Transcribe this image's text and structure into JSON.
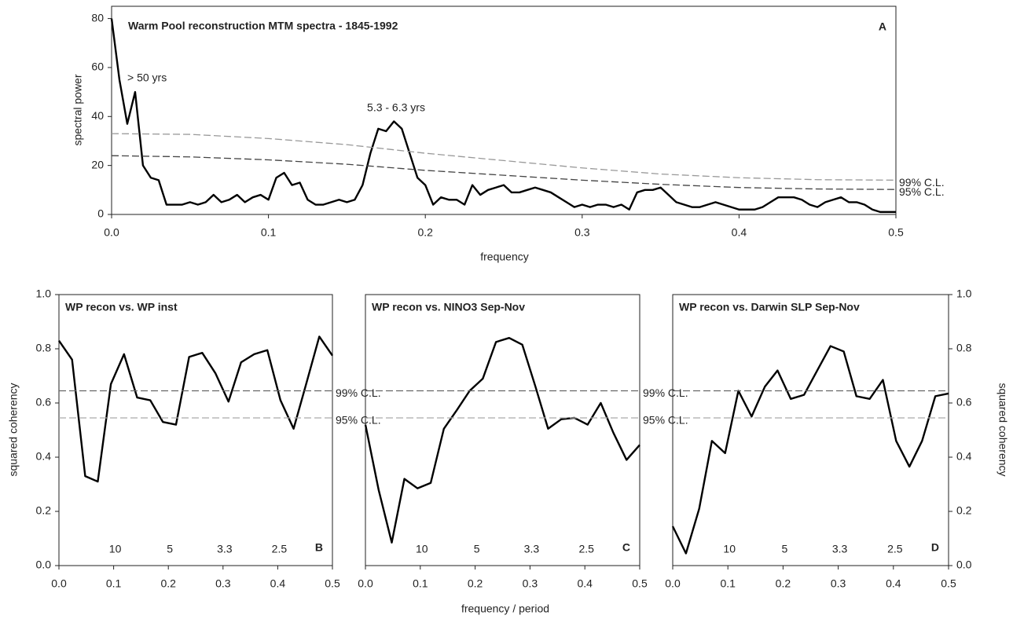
{
  "chart_data": [
    {
      "type": "line",
      "panel": "A",
      "title": "Warm Pool reconstruction MTM spectra - 1845-1992",
      "xlabel": "frequency",
      "ylabel": "spectral power",
      "annotations": [
        "> 50 yrs",
        "5.3 - 6.3 yrs"
      ],
      "xlim": [
        0,
        0.5
      ],
      "ylim": [
        0,
        85
      ],
      "xticks": [
        {
          "value": 0,
          "label": "0.0"
        },
        0.1,
        0.2,
        0.3,
        0.4,
        0.5
      ],
      "yticks": [
        0,
        20,
        40,
        60,
        80
      ],
      "ytick_side": "left",
      "x": [
        0,
        0.005,
        0.01,
        0.015,
        0.02,
        0.025,
        0.03,
        0.035,
        0.04,
        0.045,
        0.05,
        0.055,
        0.06,
        0.065,
        0.07,
        0.075,
        0.08,
        0.085,
        0.09,
        0.095,
        0.1,
        0.105,
        0.11,
        0.115,
        0.12,
        0.125,
        0.13,
        0.135,
        0.14,
        0.145,
        0.15,
        0.155,
        0.16,
        0.165,
        0.17,
        0.175,
        0.18,
        0.185,
        0.19,
        0.195,
        0.2,
        0.205,
        0.21,
        0.215,
        0.22,
        0.225,
        0.23,
        0.235,
        0.24,
        0.245,
        0.25,
        0.255,
        0.26,
        0.265,
        0.27,
        0.275,
        0.28,
        0.285,
        0.29,
        0.295,
        0.3,
        0.305,
        0.31,
        0.315,
        0.32,
        0.325,
        0.33,
        0.335,
        0.34,
        0.345,
        0.35,
        0.355,
        0.36,
        0.365,
        0.37,
        0.375,
        0.38,
        0.385,
        0.39,
        0.395,
        0.4,
        0.405,
        0.41,
        0.415,
        0.42,
        0.425,
        0.43,
        0.435,
        0.44,
        0.445,
        0.45,
        0.455,
        0.46,
        0.465,
        0.47,
        0.475,
        0.48,
        0.485,
        0.49,
        0.495,
        0.5
      ],
      "series": [
        {
          "color": "#000000",
          "values": [
            80,
            55,
            37,
            50,
            20,
            15,
            14,
            4,
            4,
            4,
            5,
            4,
            5,
            8,
            5,
            6,
            8,
            5,
            7,
            8,
            6,
            15,
            17,
            12,
            13,
            6,
            4,
            4,
            5,
            6,
            5,
            6,
            12,
            25,
            35,
            34,
            38,
            35,
            25,
            15,
            12,
            4,
            7,
            6,
            6,
            4,
            12,
            8,
            10,
            11,
            12,
            9,
            9,
            10,
            11,
            10,
            9,
            7,
            5,
            3,
            4,
            3,
            4,
            4,
            3,
            4,
            2,
            9,
            10,
            10,
            11,
            8,
            5,
            4,
            3,
            3,
            4,
            5,
            4,
            3,
            2,
            2,
            2,
            3,
            5,
            7,
            7,
            7,
            6,
            4,
            3,
            5,
            6,
            7,
            5,
            5,
            4,
            2,
            1,
            1,
            1
          ]
        },
        {
          "name": "99% C.L.",
          "color": "#999999",
          "dashed": true,
          "x": [
            0,
            0.05,
            0.1,
            0.15,
            0.2,
            0.25,
            0.3,
            0.35,
            0.4,
            0.45,
            0.5
          ],
          "values": [
            33,
            32.7,
            31,
            28.5,
            25,
            22,
            19,
            16.5,
            15,
            14.2,
            14
          ]
        },
        {
          "name": "95% C.L.",
          "color": "#444444",
          "dashed": true,
          "x": [
            0,
            0.05,
            0.1,
            0.15,
            0.2,
            0.25,
            0.3,
            0.35,
            0.4,
            0.45,
            0.5
          ],
          "values": [
            24,
            23.5,
            22.3,
            20.5,
            18,
            16,
            14,
            12.3,
            11,
            10.4,
            10.2
          ]
        }
      ]
    },
    {
      "type": "line",
      "panel": "B",
      "title": "WP recon vs. WP inst",
      "ylabel": "squared coherency",
      "period_labels": [
        "10",
        "5",
        "3.3",
        "2.5"
      ],
      "xlim": [
        0,
        0.5
      ],
      "ylim": [
        0,
        1
      ],
      "xticks": [
        {
          "value": 0,
          "label": "0.0"
        },
        0.1,
        0.2,
        0.3,
        0.4,
        0.5
      ],
      "yticks": [
        {
          "value": 0,
          "label": "0.0"
        },
        0.2,
        0.4,
        0.6,
        0.8,
        {
          "value": 1,
          "label": "1.0"
        }
      ],
      "ytick_side": "left",
      "x": [
        0,
        0.024,
        0.048,
        0.071,
        0.095,
        0.119,
        0.143,
        0.167,
        0.19,
        0.214,
        0.238,
        0.262,
        0.286,
        0.31,
        0.333,
        0.357,
        0.381,
        0.405,
        0.429,
        0.452,
        0.476,
        0.5
      ],
      "series": [
        {
          "color": "#000000",
          "values": [
            0.83,
            0.76,
            0.33,
            0.31,
            0.67,
            0.78,
            0.62,
            0.61,
            0.53,
            0.52,
            0.77,
            0.785,
            0.71,
            0.605,
            0.75,
            0.78,
            0.795,
            0.61,
            0.505,
            0.67,
            0.845,
            0.775
          ]
        },
        {
          "name": "99% C.L.",
          "color": "#666666",
          "dashed": true,
          "x": [
            0,
            0.5
          ],
          "values": [
            0.645,
            0.645
          ]
        },
        {
          "name": "95% C.L.",
          "color": "#aaaaaa",
          "dashed": true,
          "x": [
            0,
            0.5
          ],
          "values": [
            0.545,
            0.545
          ]
        }
      ]
    },
    {
      "type": "line",
      "panel": "C",
      "title": "WP recon vs. NINO3 Sep-Nov",
      "xlabel": "frequency / period",
      "period_labels": [
        "10",
        "5",
        "3.3",
        "2.5"
      ],
      "xlim": [
        0,
        0.5
      ],
      "ylim": [
        0,
        1
      ],
      "xticks": [
        {
          "value": 0,
          "label": "0.0"
        },
        0.1,
        0.2,
        0.3,
        0.4,
        0.5
      ],
      "x": [
        0,
        0.024,
        0.048,
        0.071,
        0.095,
        0.119,
        0.143,
        0.167,
        0.19,
        0.214,
        0.238,
        0.262,
        0.286,
        0.31,
        0.333,
        0.357,
        0.381,
        0.405,
        0.429,
        0.452,
        0.476,
        0.5
      ],
      "series": [
        {
          "color": "#000000",
          "values": [
            0.52,
            0.28,
            0.085,
            0.32,
            0.285,
            0.305,
            0.505,
            0.575,
            0.645,
            0.69,
            0.825,
            0.84,
            0.815,
            0.66,
            0.505,
            0.54,
            0.545,
            0.52,
            0.6,
            0.49,
            0.39,
            0.445
          ]
        },
        {
          "name": "99% C.L.",
          "color": "#666666",
          "dashed": true,
          "x": [
            0,
            0.5
          ],
          "values": [
            0.645,
            0.645
          ]
        },
        {
          "name": "95% C.L.",
          "color": "#aaaaaa",
          "dashed": true,
          "x": [
            0,
            0.5
          ],
          "values": [
            0.545,
            0.545
          ]
        }
      ]
    },
    {
      "type": "line",
      "panel": "D",
      "title": "WP recon vs. Darwin SLP Sep-Nov",
      "ylabel": "squared coherency",
      "period_labels": [
        "10",
        "5",
        "3.3",
        "2.5"
      ],
      "xlim": [
        0,
        0.5
      ],
      "ylim": [
        0,
        1
      ],
      "xticks": [
        {
          "value": 0,
          "label": "0.0"
        },
        0.1,
        0.2,
        0.3,
        0.4,
        0.5
      ],
      "yticks": [
        {
          "value": 0,
          "label": "0.0"
        },
        0.2,
        0.4,
        0.6,
        0.8,
        {
          "value": 1,
          "label": "1.0"
        }
      ],
      "ytick_side": "right",
      "x": [
        0,
        0.024,
        0.048,
        0.071,
        0.095,
        0.119,
        0.143,
        0.167,
        0.19,
        0.214,
        0.238,
        0.262,
        0.286,
        0.31,
        0.333,
        0.357,
        0.381,
        0.405,
        0.429,
        0.452,
        0.476,
        0.5
      ],
      "series": [
        {
          "color": "#000000",
          "values": [
            0.145,
            0.045,
            0.21,
            0.46,
            0.415,
            0.645,
            0.55,
            0.66,
            0.72,
            0.615,
            0.63,
            0.72,
            0.81,
            0.79,
            0.625,
            0.615,
            0.685,
            0.46,
            0.365,
            0.46,
            0.625,
            0.635
          ]
        },
        {
          "color": "#666666",
          "dashed": true,
          "x": [
            0,
            0.5
          ],
          "values": [
            0.645,
            0.645
          ]
        },
        {
          "color": "#aaaaaa",
          "dashed": true,
          "x": [
            0,
            0.5
          ],
          "values": [
            0.545,
            0.545
          ]
        }
      ]
    }
  ]
}
